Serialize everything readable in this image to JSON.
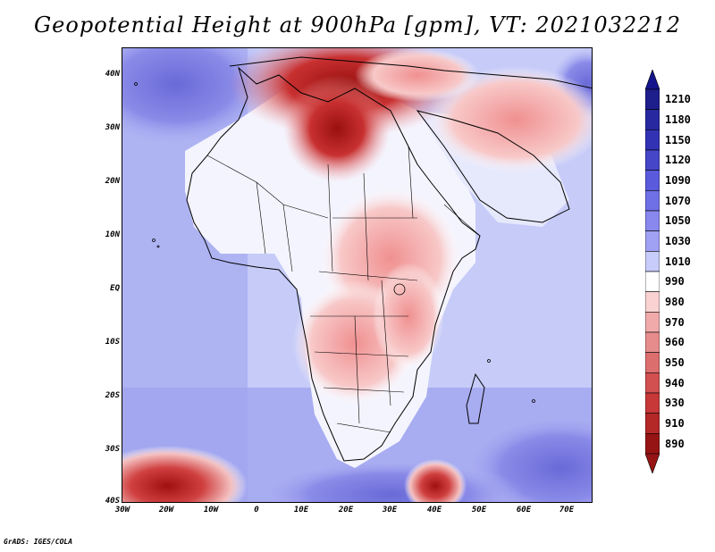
{
  "title": "Geopotential Height at 900hPa [gpm], VT: 2021032212",
  "credit": "GrADS: IGES/COLA",
  "map": {
    "lat_labels": [
      "40N",
      "30N",
      "20N",
      "10N",
      "EQ",
      "10S",
      "20S",
      "30S",
      "40S"
    ],
    "lon_labels": [
      "30W",
      "20W",
      "10W",
      "0",
      "10E",
      "20E",
      "30E",
      "40E",
      "50E",
      "60E",
      "70E"
    ]
  },
  "colorbar": {
    "levels": [
      "1210",
      "1180",
      "1150",
      "1120",
      "1090",
      "1070",
      "1050",
      "1030",
      "1010",
      "990",
      "980",
      "970",
      "960",
      "950",
      "940",
      "930",
      "910",
      "890"
    ],
    "colors": [
      "#1e1e8c",
      "#2828a0",
      "#3232b4",
      "#4646c8",
      "#5a5adc",
      "#7070e6",
      "#8888ee",
      "#a0a0f4",
      "#c8ccfa",
      "#ffffff",
      "#fad2d2",
      "#f0aaaa",
      "#e68c8c",
      "#dc6e6e",
      "#d25050",
      "#c83838",
      "#b42828",
      "#961414"
    ],
    "top_arrow_color": "#14148c",
    "bottom_arrow_color": "#961414"
  }
}
